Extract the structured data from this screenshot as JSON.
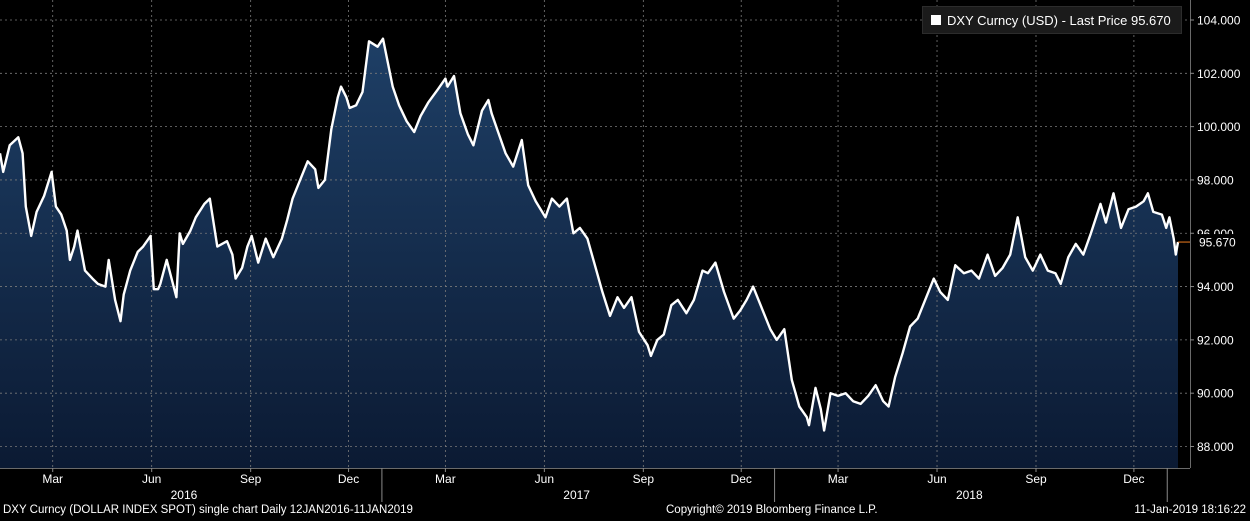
{
  "legend": {
    "label": "DXY Curncy (USD) - Last Price 95.670",
    "swatch_color": "#ffffff"
  },
  "footer": {
    "description": "DXY Curncy (DOLLAR INDEX SPOT) single chart  Daily 12JAN2016-11JAN2019",
    "copyright": "Copyright© 2019 Bloomberg Finance L.P.",
    "timestamp": "11-Jan-2019 18:16:22"
  },
  "chart_data": {
    "type": "area",
    "ylim": [
      87.0,
      104.6
    ],
    "yticks": [
      "88.000",
      "90.000",
      "92.000",
      "94.000",
      "96.000",
      "98.000",
      "100.000",
      "102.000",
      "104.000"
    ],
    "ytick_values": [
      88,
      90,
      92,
      94,
      96,
      98,
      100,
      102,
      104
    ],
    "xlim": [
      "2016-01-12",
      "2019-01-11"
    ],
    "month_ticks": [
      {
        "label": "Mar",
        "date": "2016-03-01"
      },
      {
        "label": "Jun",
        "date": "2016-06-01"
      },
      {
        "label": "Sep",
        "date": "2016-09-01"
      },
      {
        "label": "Dec",
        "date": "2016-12-01"
      },
      {
        "label": "Mar",
        "date": "2017-03-01"
      },
      {
        "label": "Jun",
        "date": "2017-06-01"
      },
      {
        "label": "Sep",
        "date": "2017-09-01"
      },
      {
        "label": "Dec",
        "date": "2017-12-01"
      },
      {
        "label": "Mar",
        "date": "2018-03-01"
      },
      {
        "label": "Jun",
        "date": "2018-06-01"
      },
      {
        "label": "Sep",
        "date": "2018-09-01"
      },
      {
        "label": "Dec",
        "date": "2018-12-01"
      }
    ],
    "year_ticks": [
      {
        "label": "2016",
        "date": "2016-07-01"
      },
      {
        "label": "2017",
        "date": "2017-07-01"
      },
      {
        "label": "2018",
        "date": "2018-07-01"
      }
    ],
    "year_separators": [
      "2017-01-01",
      "2018-01-01",
      "2019-01-01"
    ],
    "series": [
      {
        "color": "#ffffff",
        "fill_top": "#1e3f66",
        "fill_bottom": "#0b1a33",
        "points": [
          [
            "2016-01-12",
            99.0
          ],
          [
            "2016-01-15",
            98.3
          ],
          [
            "2016-01-21",
            99.3
          ],
          [
            "2016-01-29",
            99.6
          ],
          [
            "2016-02-02",
            99.0
          ],
          [
            "2016-02-05",
            97.0
          ],
          [
            "2016-02-10",
            95.9
          ],
          [
            "2016-02-15",
            96.8
          ],
          [
            "2016-02-22",
            97.4
          ],
          [
            "2016-02-29",
            98.3
          ],
          [
            "2016-03-04",
            97.0
          ],
          [
            "2016-03-09",
            96.7
          ],
          [
            "2016-03-14",
            96.1
          ],
          [
            "2016-03-17",
            95.0
          ],
          [
            "2016-03-21",
            95.5
          ],
          [
            "2016-03-24",
            96.1
          ],
          [
            "2016-03-31",
            94.6
          ],
          [
            "2016-04-07",
            94.3
          ],
          [
            "2016-04-12",
            94.1
          ],
          [
            "2016-04-19",
            94.0
          ],
          [
            "2016-04-22",
            95.0
          ],
          [
            "2016-04-28",
            93.5
          ],
          [
            "2016-05-03",
            92.7
          ],
          [
            "2016-05-06",
            93.7
          ],
          [
            "2016-05-12",
            94.6
          ],
          [
            "2016-05-19",
            95.3
          ],
          [
            "2016-05-24",
            95.5
          ],
          [
            "2016-05-31",
            95.9
          ],
          [
            "2016-06-03",
            93.9
          ],
          [
            "2016-06-07",
            93.9
          ],
          [
            "2016-06-09",
            94.1
          ],
          [
            "2016-06-15",
            95.0
          ],
          [
            "2016-06-24",
            93.6
          ],
          [
            "2016-06-27",
            96.0
          ],
          [
            "2016-06-30",
            95.6
          ],
          [
            "2016-07-07",
            96.1
          ],
          [
            "2016-07-12",
            96.6
          ],
          [
            "2016-07-20",
            97.1
          ],
          [
            "2016-07-25",
            97.3
          ],
          [
            "2016-08-01",
            95.5
          ],
          [
            "2016-08-10",
            95.7
          ],
          [
            "2016-08-15",
            95.2
          ],
          [
            "2016-08-18",
            94.3
          ],
          [
            "2016-08-24",
            94.7
          ],
          [
            "2016-08-29",
            95.5
          ],
          [
            "2016-09-02",
            95.9
          ],
          [
            "2016-09-08",
            94.9
          ],
          [
            "2016-09-15",
            95.8
          ],
          [
            "2016-09-22",
            95.1
          ],
          [
            "2016-09-30",
            95.8
          ],
          [
            "2016-10-05",
            96.5
          ],
          [
            "2016-10-10",
            97.3
          ],
          [
            "2016-10-18",
            98.1
          ],
          [
            "2016-10-24",
            98.7
          ],
          [
            "2016-10-31",
            98.4
          ],
          [
            "2016-11-03",
            97.7
          ],
          [
            "2016-11-09",
            98.0
          ],
          [
            "2016-11-15",
            99.9
          ],
          [
            "2016-11-21",
            101.1
          ],
          [
            "2016-11-24",
            101.5
          ],
          [
            "2016-11-29",
            101.1
          ],
          [
            "2016-12-02",
            100.7
          ],
          [
            "2016-12-08",
            100.8
          ],
          [
            "2016-12-14",
            101.3
          ],
          [
            "2016-12-20",
            103.2
          ],
          [
            "2016-12-28",
            103.0
          ],
          [
            "2017-01-02",
            103.3
          ],
          [
            "2017-01-06",
            102.5
          ],
          [
            "2017-01-11",
            101.5
          ],
          [
            "2017-01-17",
            100.8
          ],
          [
            "2017-01-24",
            100.2
          ],
          [
            "2017-01-31",
            99.8
          ],
          [
            "2017-02-06",
            100.4
          ],
          [
            "2017-02-13",
            100.9
          ],
          [
            "2017-02-22",
            101.4
          ],
          [
            "2017-03-01",
            101.8
          ],
          [
            "2017-03-03",
            101.5
          ],
          [
            "2017-03-09",
            101.9
          ],
          [
            "2017-03-15",
            100.5
          ],
          [
            "2017-03-22",
            99.7
          ],
          [
            "2017-03-27",
            99.3
          ],
          [
            "2017-04-04",
            100.6
          ],
          [
            "2017-04-10",
            101.0
          ],
          [
            "2017-04-13",
            100.5
          ],
          [
            "2017-04-19",
            99.8
          ],
          [
            "2017-04-26",
            99.0
          ],
          [
            "2017-05-03",
            98.5
          ],
          [
            "2017-05-11",
            99.5
          ],
          [
            "2017-05-17",
            97.8
          ],
          [
            "2017-05-24",
            97.2
          ],
          [
            "2017-06-02",
            96.6
          ],
          [
            "2017-06-08",
            97.3
          ],
          [
            "2017-06-15",
            97.0
          ],
          [
            "2017-06-22",
            97.3
          ],
          [
            "2017-06-28",
            96.0
          ],
          [
            "2017-07-04",
            96.2
          ],
          [
            "2017-07-11",
            95.8
          ],
          [
            "2017-07-18",
            94.8
          ],
          [
            "2017-07-25",
            93.8
          ],
          [
            "2017-08-01",
            92.9
          ],
          [
            "2017-08-08",
            93.6
          ],
          [
            "2017-08-14",
            93.2
          ],
          [
            "2017-08-21",
            93.6
          ],
          [
            "2017-08-28",
            92.3
          ],
          [
            "2017-09-05",
            91.8
          ],
          [
            "2017-09-08",
            91.4
          ],
          [
            "2017-09-14",
            92.0
          ],
          [
            "2017-09-20",
            92.2
          ],
          [
            "2017-09-27",
            93.3
          ],
          [
            "2017-10-03",
            93.5
          ],
          [
            "2017-10-11",
            93.0
          ],
          [
            "2017-10-18",
            93.5
          ],
          [
            "2017-10-26",
            94.6
          ],
          [
            "2017-10-31",
            94.5
          ],
          [
            "2017-11-07",
            94.9
          ],
          [
            "2017-11-15",
            93.8
          ],
          [
            "2017-11-24",
            92.8
          ],
          [
            "2017-11-30",
            93.1
          ],
          [
            "2017-12-06",
            93.5
          ],
          [
            "2017-12-12",
            94.0
          ],
          [
            "2017-12-19",
            93.3
          ],
          [
            "2017-12-28",
            92.4
          ],
          [
            "2018-01-03",
            92.0
          ],
          [
            "2018-01-10",
            92.4
          ],
          [
            "2018-01-17",
            90.5
          ],
          [
            "2018-01-24",
            89.5
          ],
          [
            "2018-01-31",
            89.1
          ],
          [
            "2018-02-02",
            88.8
          ],
          [
            "2018-02-08",
            90.2
          ],
          [
            "2018-02-13",
            89.4
          ],
          [
            "2018-02-16",
            88.6
          ],
          [
            "2018-02-22",
            90.0
          ],
          [
            "2018-03-01",
            89.9
          ],
          [
            "2018-03-08",
            90.0
          ],
          [
            "2018-03-15",
            89.7
          ],
          [
            "2018-03-22",
            89.6
          ],
          [
            "2018-03-29",
            89.9
          ],
          [
            "2018-04-05",
            90.3
          ],
          [
            "2018-04-12",
            89.7
          ],
          [
            "2018-04-17",
            89.5
          ],
          [
            "2018-04-23",
            90.6
          ],
          [
            "2018-04-30",
            91.5
          ],
          [
            "2018-05-07",
            92.5
          ],
          [
            "2018-05-14",
            92.8
          ],
          [
            "2018-05-22",
            93.6
          ],
          [
            "2018-05-29",
            94.3
          ],
          [
            "2018-06-04",
            93.8
          ],
          [
            "2018-06-11",
            93.5
          ],
          [
            "2018-06-18",
            94.8
          ],
          [
            "2018-06-26",
            94.5
          ],
          [
            "2018-07-03",
            94.6
          ],
          [
            "2018-07-10",
            94.3
          ],
          [
            "2018-07-18",
            95.2
          ],
          [
            "2018-07-25",
            94.4
          ],
          [
            "2018-08-01",
            94.7
          ],
          [
            "2018-08-08",
            95.2
          ],
          [
            "2018-08-15",
            96.6
          ],
          [
            "2018-08-22",
            95.1
          ],
          [
            "2018-08-29",
            94.6
          ],
          [
            "2018-09-05",
            95.2
          ],
          [
            "2018-09-12",
            94.6
          ],
          [
            "2018-09-19",
            94.5
          ],
          [
            "2018-09-24",
            94.1
          ],
          [
            "2018-10-01",
            95.1
          ],
          [
            "2018-10-08",
            95.6
          ],
          [
            "2018-10-15",
            95.2
          ],
          [
            "2018-10-22",
            96.0
          ],
          [
            "2018-10-31",
            97.1
          ],
          [
            "2018-11-05",
            96.4
          ],
          [
            "2018-11-12",
            97.5
          ],
          [
            "2018-11-19",
            96.2
          ],
          [
            "2018-11-26",
            96.9
          ],
          [
            "2018-12-03",
            97.0
          ],
          [
            "2018-12-10",
            97.2
          ],
          [
            "2018-12-14",
            97.5
          ],
          [
            "2018-12-19",
            96.8
          ],
          [
            "2018-12-27",
            96.7
          ],
          [
            "2018-12-31",
            96.2
          ],
          [
            "2019-01-03",
            96.6
          ],
          [
            "2019-01-07",
            95.8
          ],
          [
            "2019-01-09",
            95.2
          ],
          [
            "2019-01-11",
            95.67
          ]
        ]
      }
    ],
    "last_value": 95.67,
    "last_value_label": "95.670",
    "last_value_color": "#f07c1e"
  }
}
